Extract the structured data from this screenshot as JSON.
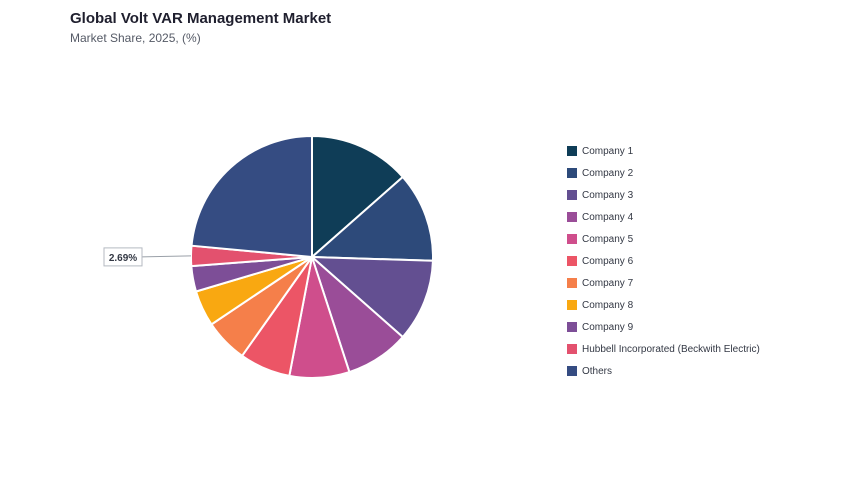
{
  "header": {
    "title": "Global Volt VAR Management Market",
    "subtitle": "Market Share, 2025, (%)"
  },
  "chart_data": {
    "type": "pie",
    "title": "Global Volt VAR Management Market",
    "subtitle": "Market Share, 2025, (%)",
    "legend_position": "right",
    "start_angle_deg": 0,
    "direction": "clockwise",
    "slices": [
      {
        "label": "Company 1",
        "value": 13.5,
        "color": "#0f3d57"
      },
      {
        "label": "Company 2",
        "value": 12.0,
        "color": "#2d4a7a"
      },
      {
        "label": "Company 3",
        "value": 11.0,
        "color": "#634f91"
      },
      {
        "label": "Company 4",
        "value": 8.5,
        "color": "#9a4d98"
      },
      {
        "label": "Company 5",
        "value": 8.0,
        "color": "#cf4e8c"
      },
      {
        "label": "Company 6",
        "value": 6.8,
        "color": "#ec5566"
      },
      {
        "label": "Company 7",
        "value": 5.8,
        "color": "#f57f4a"
      },
      {
        "label": "Company 8",
        "value": 4.8,
        "color": "#f9a811"
      },
      {
        "label": "Company 9",
        "value": 3.4,
        "color": "#7d4e97"
      },
      {
        "label": "Hubbell Incorporated (Beckwith Electric)",
        "value": 2.69,
        "color": "#e3516e"
      },
      {
        "label": "Others",
        "value": 23.51,
        "color": "#354c82"
      }
    ],
    "annotations": [
      {
        "slice_label": "Hubbell Incorporated (Beckwith Electric)",
        "text": "2.69%"
      }
    ]
  }
}
